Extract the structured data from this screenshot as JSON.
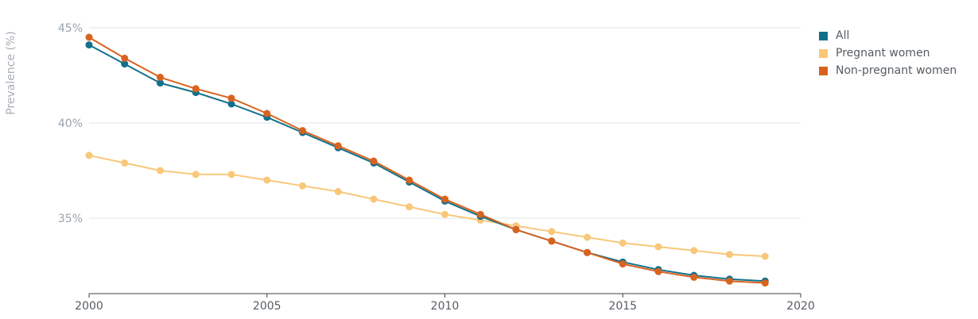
{
  "chart_data": {
    "type": "line",
    "ylabel": "Prevalence (%)",
    "xlim": [
      2000,
      2020
    ],
    "ylim": [
      31,
      45
    ],
    "y_ticks": [
      {
        "value": 35,
        "label": "35%"
      },
      {
        "value": 40,
        "label": "40%"
      },
      {
        "value": 45,
        "label": "45%"
      }
    ],
    "x_ticks": [
      {
        "value": 2000,
        "label": "2000"
      },
      {
        "value": 2005,
        "label": "2005"
      },
      {
        "value": 2010,
        "label": "2010"
      },
      {
        "value": 2015,
        "label": "2015"
      },
      {
        "value": 2020,
        "label": "2020"
      }
    ],
    "grid": "horizontal",
    "legend_position": "top-right",
    "x": [
      2000,
      2001,
      2002,
      2003,
      2004,
      2005,
      2006,
      2007,
      2008,
      2009,
      2010,
      2011,
      2012,
      2013,
      2014,
      2015,
      2016,
      2017,
      2018,
      2019
    ],
    "series": [
      {
        "name": "All",
        "color": "#12708a",
        "values": [
          44.1,
          43.1,
          42.1,
          41.6,
          41.0,
          40.3,
          39.5,
          38.7,
          37.9,
          36.9,
          35.9,
          35.1,
          34.4,
          33.8,
          33.2,
          32.7,
          32.3,
          32.0,
          31.8,
          31.7
        ]
      },
      {
        "name": "Pregnant women",
        "color": "#f8c77a",
        "values": [
          38.3,
          37.9,
          37.5,
          37.3,
          37.3,
          37.0,
          36.7,
          36.4,
          36.0,
          35.6,
          35.2,
          34.9,
          34.6,
          34.3,
          34.0,
          33.7,
          33.5,
          33.3,
          33.1,
          33.0
        ]
      },
      {
        "name": "Non-pregnant women",
        "color": "#d8631f",
        "values": [
          44.5,
          43.4,
          42.4,
          41.8,
          41.3,
          40.5,
          39.6,
          38.8,
          38.0,
          37.0,
          36.0,
          35.2,
          34.4,
          33.8,
          33.2,
          32.6,
          32.2,
          31.9,
          31.7,
          31.6
        ]
      }
    ]
  }
}
